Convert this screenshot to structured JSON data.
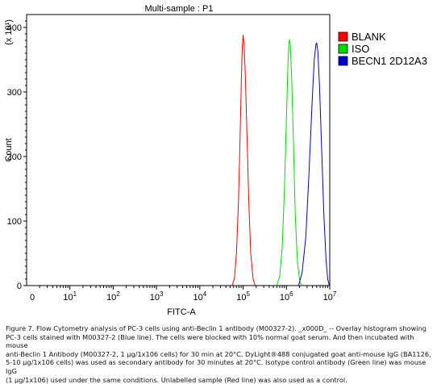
{
  "chart_data": {
    "type": "line",
    "title": "Multi-sample : P1",
    "xlabel": "FITC-A",
    "ylabel": "Count",
    "y_multiplier": "(x 10¹)",
    "x_scale": "log",
    "xlim": [
      0,
      10000000
    ],
    "ylim": [
      0,
      420
    ],
    "x_tick_labels": [
      {
        "value": 0,
        "base": "0",
        "exp": ""
      },
      {
        "value": 10,
        "base": "10",
        "exp": "1"
      },
      {
        "value": 100,
        "base": "10",
        "exp": "2"
      },
      {
        "value": 1000,
        "base": "10",
        "exp": "3"
      },
      {
        "value": 10000,
        "base": "10",
        "exp": "4"
      },
      {
        "value": 100000,
        "base": "10",
        "exp": "5"
      },
      {
        "value": 1000000,
        "base": "10",
        "exp": "6"
      },
      {
        "value": 10000000,
        "base": "10",
        "exp": "7"
      }
    ],
    "y_ticks": [
      "0",
      "100",
      "200",
      "300",
      "400"
    ],
    "legend_position": "top-right",
    "series": [
      {
        "name": "BLANK",
        "color": "#ff0000",
        "peak_x": 100000,
        "peak_y": 388,
        "points": [
          [
            56000,
            0
          ],
          [
            63000,
            12
          ],
          [
            70000,
            50
          ],
          [
            78000,
            130
          ],
          [
            85000,
            230
          ],
          [
            91000,
            320
          ],
          [
            96000,
            372
          ],
          [
            100000,
            388
          ],
          [
            105000,
            375
          ],
          [
            112000,
            330
          ],
          [
            122000,
            240
          ],
          [
            135000,
            130
          ],
          [
            150000,
            50
          ],
          [
            170000,
            10
          ],
          [
            190000,
            0
          ]
        ]
      },
      {
        "name": "ISO",
        "color": "#00dd00",
        "peak_x": 1180000,
        "peak_y": 381,
        "points": [
          [
            600000,
            0
          ],
          [
            700000,
            15
          ],
          [
            800000,
            60
          ],
          [
            900000,
            150
          ],
          [
            1000000,
            260
          ],
          [
            1080000,
            340
          ],
          [
            1140000,
            375
          ],
          [
            1180000,
            381
          ],
          [
            1230000,
            372
          ],
          [
            1320000,
            320
          ],
          [
            1450000,
            220
          ],
          [
            1600000,
            110
          ],
          [
            1800000,
            35
          ],
          [
            2050000,
            5
          ],
          [
            2300000,
            0
          ]
        ]
      },
      {
        "name": "BECN1 2D12A3",
        "color": "#0000cc",
        "peak_x": 5000000,
        "peak_y": 376,
        "points": [
          [
            1900000,
            0
          ],
          [
            2300000,
            20
          ],
          [
            2800000,
            75
          ],
          [
            3300000,
            170
          ],
          [
            3900000,
            280
          ],
          [
            4400000,
            350
          ],
          [
            4800000,
            374
          ],
          [
            5000000,
            376
          ],
          [
            5300000,
            364
          ],
          [
            5800000,
            310
          ],
          [
            6500000,
            210
          ],
          [
            7300000,
            110
          ],
          [
            8200000,
            40
          ],
          [
            9000000,
            10
          ],
          [
            9800000,
            0
          ]
        ]
      }
    ]
  },
  "caption": "Figure 7. Flow Cytometry analysis of PC-3 cells using anti-Beclin 1 antibody (M00327-2). _x000D_ -- Overlay histogram showing\nPC-3 cells stained with M00327-2 (Blue line). The cells were blocked with 10% normal goat serum. And then incubated with mouse\nanti-Beclin 1 Antibody (M00327-2, 1 µg/1x106 cells) for 30 min at 20°C. DyLight®488 conjugated goat anti-mouse IgG (BA1126,\n5-10 µg/1x106 cells) was used as secondary antibody for 30 minutes at 20°C. Isotype control antibody (Green line) was mouse IgG\n(1 µg/1x106) used under the same conditions. Unlabelled sample (Red line) was also used as a control."
}
